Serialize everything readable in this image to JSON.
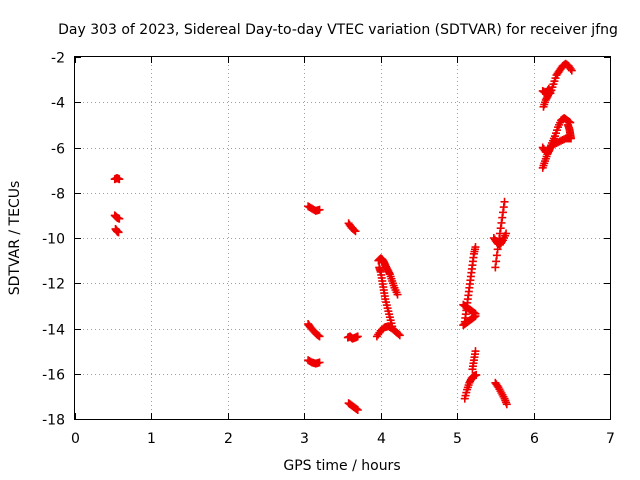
{
  "chart_data": {
    "type": "scatter",
    "title": "Day 303 of 2023, Sidereal Day-to-day VTEC variation (SDTVAR) for receiver jfng",
    "xlabel": "GPS time / hours",
    "ylabel": "SDTVAR / TECUs",
    "xlim": [
      0,
      7
    ],
    "ylim": [
      -18,
      -2
    ],
    "x_ticks": [
      "0",
      "1",
      "2",
      "3",
      "4",
      "5",
      "6",
      "7"
    ],
    "y_ticks": [
      "-2",
      "-4",
      "-6",
      "-8",
      "-10",
      "-12",
      "-14",
      "-16",
      "-18"
    ],
    "grid": true,
    "marker": "+",
    "color": "#ee0000",
    "segments": [
      {
        "x": [
          0.52,
          0.55,
          0.58
        ],
        "y": [
          -7.4,
          -7.35,
          -7.4
        ]
      },
      {
        "x": [
          0.52,
          0.55,
          0.58
        ],
        "y": [
          -9.0,
          -9.1,
          -9.15
        ]
      },
      {
        "x": [
          0.53,
          0.55,
          0.57
        ],
        "y": [
          -9.6,
          -9.7,
          -9.75
        ]
      },
      {
        "x": [
          3.05,
          3.1,
          3.15,
          3.2
        ],
        "y": [
          -8.6,
          -8.7,
          -8.8,
          -8.75
        ]
      },
      {
        "x": [
          3.05,
          3.08,
          3.12,
          3.16,
          3.2
        ],
        "y": [
          -13.8,
          -13.95,
          -14.1,
          -14.25,
          -14.35
        ]
      },
      {
        "x": [
          3.05,
          3.1,
          3.15,
          3.2
        ],
        "y": [
          -15.4,
          -15.5,
          -15.55,
          -15.5
        ]
      },
      {
        "x": [
          3.58,
          3.62,
          3.67
        ],
        "y": [
          -9.35,
          -9.55,
          -9.7
        ]
      },
      {
        "x": [
          3.57,
          3.6,
          3.63,
          3.67,
          3.7
        ],
        "y": [
          -14.4,
          -14.35,
          -14.45,
          -14.4,
          -14.35
        ]
      },
      {
        "x": [
          3.58,
          3.62,
          3.66,
          3.7
        ],
        "y": [
          -17.3,
          -17.4,
          -17.5,
          -17.6
        ]
      },
      {
        "x": [
          3.97,
          4.0,
          4.02,
          4.04,
          4.06,
          4.09,
          4.12,
          4.15,
          4.18,
          4.22
        ],
        "y": [
          -11.0,
          -10.9,
          -10.95,
          -11.05,
          -11.2,
          -11.4,
          -11.6,
          -11.9,
          -12.2,
          -12.5
        ]
      },
      {
        "x": [
          3.98,
          4.0,
          4.02,
          4.04,
          4.06,
          4.09,
          4.12,
          4.15
        ],
        "y": [
          -11.3,
          -11.5,
          -11.9,
          -12.3,
          -12.7,
          -13.1,
          -13.5,
          -13.9
        ]
      },
      {
        "x": [
          3.95,
          4.0,
          4.05,
          4.1,
          4.15,
          4.2,
          4.25
        ],
        "y": [
          -14.35,
          -14.1,
          -13.95,
          -13.9,
          -14.0,
          -14.15,
          -14.3
        ]
      },
      {
        "x": [
          5.1,
          5.12,
          5.14,
          5.16,
          5.18,
          5.2,
          5.22,
          5.24
        ],
        "y": [
          -13.7,
          -13.2,
          -12.7,
          -12.2,
          -11.7,
          -11.2,
          -10.7,
          -10.4
        ]
      },
      {
        "x": [
          5.08,
          5.12,
          5.16,
          5.2,
          5.24
        ],
        "y": [
          -12.95,
          -13.05,
          -13.15,
          -13.25,
          -13.35
        ]
      },
      {
        "x": [
          5.08,
          5.12,
          5.16,
          5.2,
          5.24
        ],
        "y": [
          -13.85,
          -13.75,
          -13.65,
          -13.55,
          -13.45
        ]
      },
      {
        "x": [
          5.1,
          5.13,
          5.16,
          5.19,
          5.22,
          5.25
        ],
        "y": [
          -17.1,
          -16.7,
          -16.4,
          -16.2,
          -16.1,
          -16.05
        ]
      },
      {
        "x": [
          5.2,
          5.22,
          5.24
        ],
        "y": [
          -15.8,
          -15.4,
          -15.0
        ]
      },
      {
        "x": [
          5.5,
          5.53,
          5.56,
          5.59,
          5.62
        ],
        "y": [
          -11.3,
          -10.5,
          -9.8,
          -9.1,
          -8.4
        ]
      },
      {
        "x": [
          5.48,
          5.52,
          5.56,
          5.6,
          5.64
        ],
        "y": [
          -10.0,
          -10.2,
          -10.3,
          -10.1,
          -9.8
        ]
      },
      {
        "x": [
          5.5,
          5.54,
          5.58,
          5.62,
          5.65
        ],
        "y": [
          -16.4,
          -16.6,
          -16.85,
          -17.1,
          -17.35
        ]
      },
      {
        "x": [
          6.12,
          6.15,
          6.18,
          6.21,
          6.24,
          6.28
        ],
        "y": [
          -6.9,
          -6.6,
          -6.3,
          -6.1,
          -5.8,
          -5.5
        ]
      },
      {
        "x": [
          6.12,
          6.16,
          6.2,
          6.24,
          6.3,
          6.36,
          6.42,
          6.48
        ],
        "y": [
          -6.0,
          -6.2,
          -6.1,
          -5.9,
          -5.8,
          -5.7,
          -5.6,
          -5.6
        ]
      },
      {
        "x": [
          6.28,
          6.32,
          6.36,
          6.4,
          6.44,
          6.48
        ],
        "y": [
          -5.5,
          -5.1,
          -4.8,
          -4.7,
          -4.8,
          -4.9
        ]
      },
      {
        "x": [
          6.45,
          6.47,
          6.48,
          6.49
        ],
        "y": [
          -5.0,
          -5.2,
          -5.4,
          -5.6
        ]
      },
      {
        "x": [
          6.13,
          6.16,
          6.19,
          6.22
        ],
        "y": [
          -4.2,
          -3.9,
          -3.7,
          -3.5
        ]
      },
      {
        "x": [
          6.22,
          6.26,
          6.3,
          6.34,
          6.38,
          6.42,
          6.46,
          6.5
        ],
        "y": [
          -3.6,
          -3.2,
          -2.8,
          -2.6,
          -2.4,
          -2.3,
          -2.4,
          -2.6
        ]
      },
      {
        "x": [
          6.12,
          6.16,
          6.2
        ],
        "y": [
          -3.5,
          -3.6,
          -3.4
        ]
      }
    ]
  }
}
